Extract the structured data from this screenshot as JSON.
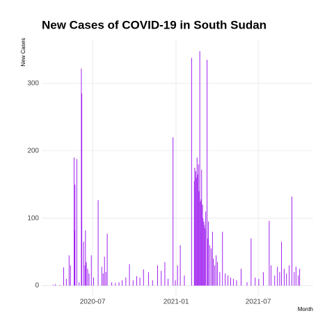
{
  "chart_data": {
    "type": "bar",
    "title": "New Cases of COVID-19 in South Sudan",
    "x_label": "Month",
    "y_label": "New Cases",
    "color": "#a020f0",
    "grid": true,
    "xlim": [
      "2020-03-11",
      "2021-10-30"
    ],
    "ylim": [
      -15,
      365
    ],
    "xticks": [
      {
        "value": "2020-07-01",
        "label": "2020-07"
      },
      {
        "value": "2021-01-01",
        "label": "2021-01"
      },
      {
        "value": "2021-07-01",
        "label": "2021-07"
      }
    ],
    "yticks": [
      0,
      100,
      200,
      300
    ],
    "x": [
      "2020-04-05",
      "2020-04-10",
      "2020-04-20",
      "2020-04-28",
      "2020-05-04",
      "2020-05-10",
      "2020-05-13",
      "2020-05-21",
      "2020-05-22",
      "2020-05-23",
      "2020-05-27",
      "2020-06-01",
      "2020-06-06",
      "2020-06-07",
      "2020-06-11",
      "2020-06-14",
      "2020-06-15",
      "2020-06-17",
      "2020-06-20",
      "2020-06-23",
      "2020-06-28",
      "2020-07-03",
      "2020-07-13",
      "2020-07-21",
      "2020-07-24",
      "2020-07-27",
      "2020-07-30",
      "2020-08-02",
      "2020-08-12",
      "2020-08-20",
      "2020-08-28",
      "2020-09-04",
      "2020-09-12",
      "2020-09-20",
      "2020-09-28",
      "2020-10-06",
      "2020-10-13",
      "2020-10-21",
      "2020-11-01",
      "2020-11-10",
      "2020-11-21",
      "2020-11-29",
      "2020-12-07",
      "2020-12-14",
      "2020-12-25",
      "2020-12-30",
      "2021-01-04",
      "2021-01-10",
      "2021-01-19",
      "2021-02-04",
      "2021-02-10",
      "2021-02-11",
      "2021-02-13",
      "2021-02-14",
      "2021-02-16",
      "2021-02-17",
      "2021-02-19",
      "2021-02-20",
      "2021-02-22",
      "2021-02-23",
      "2021-02-25",
      "2021-02-26",
      "2021-02-28",
      "2021-03-01",
      "2021-03-03",
      "2021-03-04",
      "2021-03-06",
      "2021-03-07",
      "2021-03-10",
      "2021-03-12",
      "2021-03-13",
      "2021-03-16",
      "2021-03-19",
      "2021-03-22",
      "2021-03-24",
      "2021-03-27",
      "2021-03-30",
      "2021-04-02",
      "2021-04-07",
      "2021-04-13",
      "2021-04-19",
      "2021-04-25",
      "2021-05-01",
      "2021-05-07",
      "2021-05-14",
      "2021-05-24",
      "2021-06-06",
      "2021-06-15",
      "2021-06-24",
      "2021-07-02",
      "2021-07-12",
      "2021-07-25",
      "2021-07-29",
      "2021-08-06",
      "2021-08-12",
      "2021-08-17",
      "2021-08-21",
      "2021-08-27",
      "2021-09-01",
      "2021-09-07",
      "2021-09-13",
      "2021-09-18",
      "2021-09-22",
      "2021-09-27",
      "2021-09-30"
    ],
    "values": [
      1,
      2,
      1,
      27,
      10,
      45,
      30,
      190,
      82,
      150,
      188,
      5,
      322,
      285,
      65,
      30,
      82,
      35,
      25,
      18,
      45,
      12,
      127,
      28,
      18,
      43,
      20,
      77,
      5,
      4,
      5,
      8,
      12,
      32,
      8,
      14,
      12,
      24,
      20,
      8,
      30,
      22,
      35,
      10,
      220,
      8,
      30,
      60,
      15,
      338,
      155,
      175,
      170,
      160,
      190,
      165,
      180,
      140,
      348,
      125,
      128,
      172,
      120,
      100,
      95,
      90,
      85,
      110,
      335,
      70,
      95,
      60,
      55,
      80,
      40,
      30,
      45,
      35,
      20,
      80,
      18,
      15,
      12,
      10,
      8,
      25,
      5,
      70,
      12,
      10,
      20,
      96,
      30,
      15,
      28,
      20,
      65,
      25,
      18,
      30,
      132,
      20,
      28,
      15,
      25
    ]
  }
}
